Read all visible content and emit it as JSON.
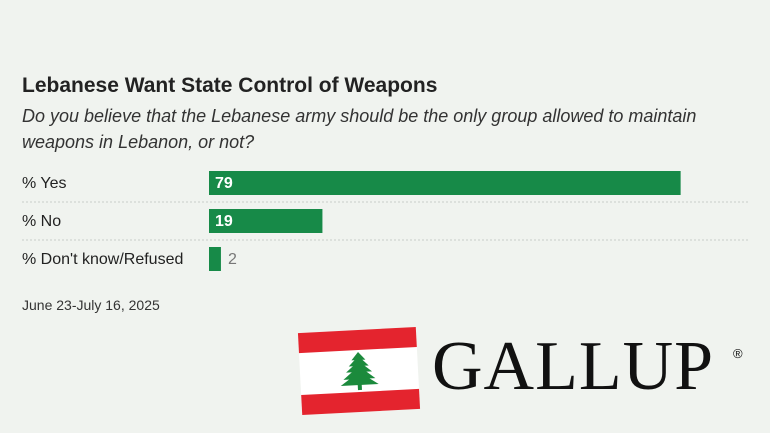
{
  "chart_data": {
    "type": "bar",
    "orientation": "horizontal",
    "title": "Lebanese Want State Control of Weapons",
    "subtitle": "Do you believe that the Lebanese army should be the only group allowed to maintain weapons in Lebanon, or not?",
    "categories": [
      "% Yes",
      "% No",
      "% Don't know/Refused"
    ],
    "values": [
      79,
      19,
      2
    ],
    "color": "#178a48",
    "note": "June 23-July 16, 2025",
    "logo": "GALLUP",
    "logo_symbol": "®"
  }
}
